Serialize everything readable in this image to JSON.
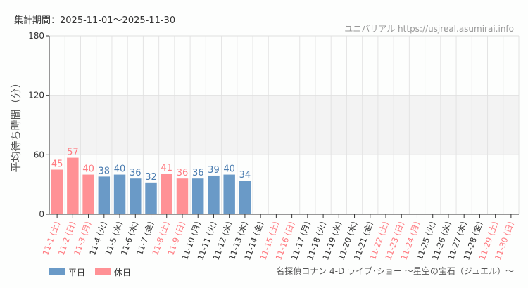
{
  "header": {
    "period": "集計期間：2025-11-01～2025-11-30",
    "source": "ユニバリアル  https://usjreal.asumirai.info"
  },
  "footer": {
    "attraction": "名探偵コナン 4-D ライブ･ショー ～星空の宝石（ジュエル）～"
  },
  "colors": {
    "weekday": "#6a9ac7",
    "holiday": "#ff9195",
    "weekday_text": "#4a7cb0",
    "holiday_text": "#ff7a80",
    "band": "#f3f3f3"
  },
  "chart_data": {
    "type": "bar",
    "ylabel": "平均待ち時間（分）",
    "ylim": [
      0,
      180
    ],
    "yticks": [
      0,
      60,
      120,
      180
    ],
    "grid": true,
    "legend_placement": "bottom-left",
    "legend": [
      {
        "name": "平日",
        "color": "#6a9ac7"
      },
      {
        "name": "休日",
        "color": "#ff9195"
      }
    ],
    "categories": [
      "11-1 (土)",
      "11-2 (日)",
      "11-3 (月)",
      "11-4 (火)",
      "11-5 (水)",
      "11-6 (木)",
      "11-7 (金)",
      "11-8 (土)",
      "11-9 (日)",
      "11-10 (月)",
      "11-11 (火)",
      "11-12 (水)",
      "11-13 (木)",
      "11-14 (金)",
      "11-15 (土)",
      "11-16 (日)",
      "11-17 (月)",
      "11-18 (火)",
      "11-19 (水)",
      "11-20 (木)",
      "11-21 (金)",
      "11-22 (土)",
      "11-23 (日)",
      "11-24 (月)",
      "11-25 (火)",
      "11-26 (水)",
      "11-27 (木)",
      "11-28 (金)",
      "11-29 (土)",
      "11-30 (日)"
    ],
    "holiday": [
      1,
      1,
      1,
      0,
      0,
      0,
      0,
      1,
      1,
      0,
      0,
      0,
      0,
      0,
      1,
      1,
      0,
      0,
      0,
      0,
      0,
      1,
      1,
      1,
      0,
      0,
      0,
      0,
      1,
      1
    ],
    "values": [
      45,
      57,
      40,
      38,
      40,
      36,
      32,
      41,
      36,
      36,
      39,
      40,
      34,
      null,
      null,
      null,
      null,
      null,
      null,
      null,
      null,
      null,
      null,
      null,
      null,
      null,
      null,
      null,
      null,
      null
    ]
  }
}
